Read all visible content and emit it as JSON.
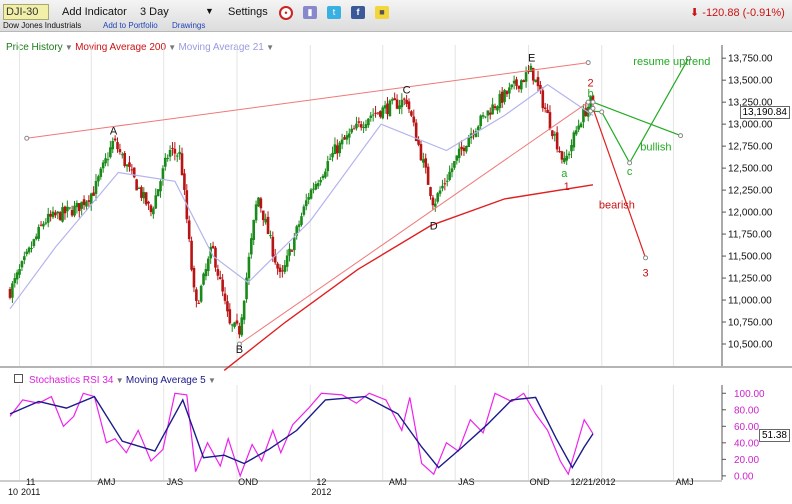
{
  "toolbar": {
    "symbol": "DJI-30",
    "add_indicator": "Add Indicator",
    "period": "3 Day",
    "settings": "Settings",
    "index_name": "Dow Jones Industrials",
    "add_to_portfolio": "Add to Portfolio",
    "drawings": "Drawings",
    "change_text": "-120.88 (-0.91%)",
    "icons": [
      "alarm-clock-icon",
      "bookmark-icon",
      "twitter-icon",
      "facebook-icon",
      "note-icon"
    ]
  },
  "colors": {
    "price_up": "#1a8a1a",
    "price_down": "#b81414",
    "ma200": "#e02020",
    "ma21": "#b4b4ee",
    "trendline": "#f07878",
    "projection_green": "#22aa22",
    "projection_red": "#e02020",
    "rsi": "#ee22ee",
    "rsi_ma": "#1a1a8a"
  },
  "chart_data": [
    {
      "type": "candlestick",
      "legend": [
        {
          "name": "Price History"
        },
        {
          "name": "Moving Average 200"
        },
        {
          "name": "Moving Average 21"
        }
      ],
      "ylim": [
        10250,
        13900
      ],
      "yticks": [
        "13,750.00",
        "13,500.00",
        "13,250.00",
        "13,000.00",
        "12,750.00",
        "12,500.00",
        "12,250.00",
        "12,000.00",
        "11,750.00",
        "11,500.00",
        "11,250.00",
        "11,000.00",
        "10,750.00",
        "10,500.00"
      ],
      "last_value": "13,190.84",
      "xticks": [
        "11",
        "AMJ",
        "JAS",
        "OND",
        "12",
        "AMJ",
        "JAS",
        "OND",
        "12/21/2012",
        "AMJ"
      ],
      "xticks_sub": [
        "2011",
        "2012"
      ],
      "x_origin_label": "10",
      "date_range": [
        "2010-12-20",
        "2013-06-01"
      ],
      "price_path": [
        [
          "2010-12-20",
          11100
        ],
        [
          "2011-02-01",
          11900
        ],
        [
          "2011-03-15",
          12050
        ],
        [
          "2011-04-05",
          12250
        ],
        [
          "2011-04-29",
          12810
        ],
        [
          "2011-06-15",
          12000
        ],
        [
          "2011-07-08",
          12700
        ],
        [
          "2011-07-22",
          12650
        ],
        [
          "2011-08-10",
          10900
        ],
        [
          "2011-08-31",
          11600
        ],
        [
          "2011-09-22",
          10700
        ],
        [
          "2011-10-04",
          10655
        ],
        [
          "2011-10-27",
          12200
        ],
        [
          "2011-11-25",
          11230
        ],
        [
          "2011-12-30",
          12200
        ],
        [
          "2012-02-01",
          12700
        ],
        [
          "2012-03-15",
          13100
        ],
        [
          "2012-05-01",
          13280
        ],
        [
          "2012-06-04",
          12100
        ],
        [
          "2012-07-20",
          12900
        ],
        [
          "2012-08-15",
          13180
        ],
        [
          "2012-10-05",
          13610
        ],
        [
          "2012-11-15",
          12550
        ],
        [
          "2012-12-05",
          13050
        ],
        [
          "2012-12-18",
          13250
        ],
        [
          "2012-12-21",
          13190
        ]
      ],
      "ma200": [
        [
          "2011-09-15",
          10200
        ],
        [
          "2011-12-01",
          10750
        ],
        [
          "2012-03-01",
          11350
        ],
        [
          "2012-06-01",
          11850
        ],
        [
          "2012-09-01",
          12150
        ],
        [
          "2012-12-21",
          12310
        ]
      ],
      "ma21": [
        [
          "2010-12-20",
          10900
        ],
        [
          "2011-02-15",
          11600
        ],
        [
          "2011-05-05",
          12450
        ],
        [
          "2011-07-15",
          12350
        ],
        [
          "2011-09-01",
          11500
        ],
        [
          "2011-10-15",
          11200
        ],
        [
          "2012-01-01",
          11900
        ],
        [
          "2012-03-30",
          13000
        ],
        [
          "2012-06-20",
          12700
        ],
        [
          "2012-09-01",
          13100
        ],
        [
          "2012-10-25",
          13450
        ],
        [
          "2012-12-21",
          13100
        ]
      ],
      "trendlines": [
        {
          "points": [
            [
              "2011-01-10",
              12840
            ],
            [
              "2012-12-15",
              13700
            ]
          ],
          "color": "trendline"
        },
        {
          "points": [
            [
              "2011-10-04",
              10500
            ],
            [
              "2012-12-15",
              13250
            ]
          ],
          "color": "trendline"
        }
      ],
      "wave_labels": [
        {
          "text": "A",
          "x": "2011-04-29",
          "y": 12880,
          "color": "#111"
        },
        {
          "text": "B",
          "x": "2011-10-04",
          "y": 10400,
          "color": "#111"
        },
        {
          "text": "C",
          "x": "2012-05-01",
          "y": 13350,
          "color": "#111"
        },
        {
          "text": "D",
          "x": "2012-06-04",
          "y": 11800,
          "color": "#111"
        },
        {
          "text": "E",
          "x": "2012-10-05",
          "y": 13710,
          "color": "#111"
        },
        {
          "text": "a",
          "x": "2012-11-15",
          "y": 12400,
          "color": "#22aa22"
        },
        {
          "text": "b",
          "x": "2012-12-18",
          "y": 13310,
          "color": "#22aa22"
        },
        {
          "text": "c",
          "x": "2013-02-05",
          "y": 12420,
          "color": "#22aa22"
        },
        {
          "text": "2",
          "x": "2012-12-18",
          "y": 13430,
          "color": "#cc1111"
        },
        {
          "text": "1",
          "x": "2012-11-18",
          "y": 12250,
          "color": "#cc1111"
        },
        {
          "text": "3",
          "x": "2013-02-25",
          "y": 11270,
          "color": "#cc1111"
        }
      ],
      "annotations": [
        {
          "text": "resume uptrend",
          "x": "2013-03-30",
          "y": 13670,
          "color": "#22aa22"
        },
        {
          "text": "bullish",
          "x": "2013-03-10",
          "y": 12700,
          "color": "#22aa22"
        },
        {
          "text": "bearish",
          "x": "2013-01-20",
          "y": 12040,
          "color": "#cc1111"
        }
      ],
      "projection_green": [
        [
          "2012-12-18",
          13150
        ],
        [
          "2013-01-01",
          13140
        ],
        [
          "2013-02-05",
          12560
        ],
        [
          "2013-04-20",
          13750
        ]
      ],
      "projection_green_alt": [
        [
          "2012-12-21",
          13250
        ],
        [
          "2013-04-10",
          12870
        ]
      ],
      "projection_red": [
        [
          "2012-12-21",
          13180
        ],
        [
          "2013-02-25",
          11480
        ]
      ]
    },
    {
      "type": "line",
      "legend": [
        {
          "name": "Stochastics RSI 34"
        },
        {
          "name": "Moving Average 5"
        }
      ],
      "ylim": [
        -5,
        110
      ],
      "yticks": [
        "100.00",
        "80.00",
        "60.00",
        "40.00",
        "20.00",
        "0.00"
      ],
      "last_value": "51.38",
      "rsi": [
        [
          "2010-12-20",
          72
        ],
        [
          "2011-01-05",
          92
        ],
        [
          "2011-01-25",
          88
        ],
        [
          "2011-02-10",
          96
        ],
        [
          "2011-02-25",
          60
        ],
        [
          "2011-03-10",
          72
        ],
        [
          "2011-03-22",
          100
        ],
        [
          "2011-04-05",
          96
        ],
        [
          "2011-04-20",
          40
        ],
        [
          "2011-05-01",
          45
        ],
        [
          "2011-05-15",
          28
        ],
        [
          "2011-05-30",
          55
        ],
        [
          "2011-06-15",
          18
        ],
        [
          "2011-06-30",
          32
        ],
        [
          "2011-07-15",
          100
        ],
        [
          "2011-07-30",
          98
        ],
        [
          "2011-08-10",
          5
        ],
        [
          "2011-08-25",
          40
        ],
        [
          "2011-09-10",
          12
        ],
        [
          "2011-09-20",
          45
        ],
        [
          "2011-10-05",
          0
        ],
        [
          "2011-10-20",
          38
        ],
        [
          "2011-11-01",
          18
        ],
        [
          "2011-11-15",
          55
        ],
        [
          "2011-11-25",
          28
        ],
        [
          "2011-12-10",
          62
        ],
        [
          "2011-12-30",
          82
        ],
        [
          "2012-01-15",
          100
        ],
        [
          "2012-02-10",
          98
        ],
        [
          "2012-02-28",
          88
        ],
        [
          "2012-03-15",
          100
        ],
        [
          "2012-04-05",
          92
        ],
        [
          "2012-04-25",
          55
        ],
        [
          "2012-05-05",
          95
        ],
        [
          "2012-05-20",
          15
        ],
        [
          "2012-06-04",
          2
        ],
        [
          "2012-06-20",
          40
        ],
        [
          "2012-07-05",
          30
        ],
        [
          "2012-07-20",
          68
        ],
        [
          "2012-08-05",
          52
        ],
        [
          "2012-08-20",
          100
        ],
        [
          "2012-09-10",
          90
        ],
        [
          "2012-09-25",
          100
        ],
        [
          "2012-10-10",
          75
        ],
        [
          "2012-10-25",
          55
        ],
        [
          "2012-11-10",
          18
        ],
        [
          "2012-11-20",
          2
        ],
        [
          "2012-11-30",
          35
        ],
        [
          "2012-12-10",
          68
        ],
        [
          "2012-12-21",
          51
        ]
      ],
      "ma5": [
        [
          "2010-12-20",
          75
        ],
        [
          "2011-01-25",
          90
        ],
        [
          "2011-03-01",
          82
        ],
        [
          "2011-04-05",
          96
        ],
        [
          "2011-05-10",
          42
        ],
        [
          "2011-06-20",
          30
        ],
        [
          "2011-07-25",
          92
        ],
        [
          "2011-08-20",
          22
        ],
        [
          "2011-09-15",
          25
        ],
        [
          "2011-10-10",
          15
        ],
        [
          "2011-11-10",
          32
        ],
        [
          "2011-12-15",
          55
        ],
        [
          "2012-01-20",
          92
        ],
        [
          "2012-03-10",
          96
        ],
        [
          "2012-04-20",
          75
        ],
        [
          "2012-05-20",
          35
        ],
        [
          "2012-06-10",
          10
        ],
        [
          "2012-07-10",
          35
        ],
        [
          "2012-08-10",
          62
        ],
        [
          "2012-09-10",
          92
        ],
        [
          "2012-10-10",
          95
        ],
        [
          "2012-11-05",
          45
        ],
        [
          "2012-11-25",
          10
        ],
        [
          "2012-12-10",
          35
        ],
        [
          "2012-12-21",
          51
        ]
      ]
    }
  ]
}
